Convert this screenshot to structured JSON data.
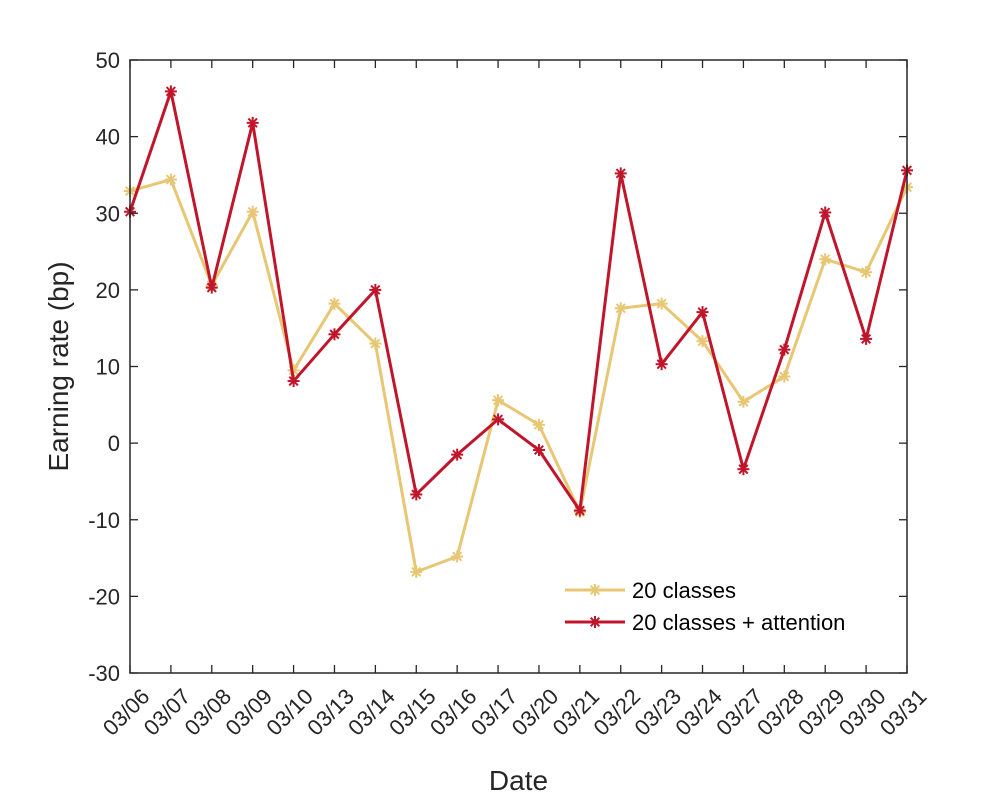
{
  "chart_data": {
    "type": "line",
    "title": "",
    "xlabel": "Date",
    "ylabel": "Earning rate (bp)",
    "categories": [
      "03/06",
      "03/07",
      "03/08",
      "03/09",
      "03/10",
      "03/13",
      "03/14",
      "03/15",
      "03/16",
      "03/17",
      "03/20",
      "03/21",
      "03/22",
      "03/23",
      "03/24",
      "03/27",
      "03/28",
      "03/29",
      "03/30",
      "03/31"
    ],
    "yticks": [
      -30,
      -20,
      -10,
      0,
      10,
      20,
      30,
      40,
      50
    ],
    "ylim": [
      -30,
      50
    ],
    "grid": false,
    "legend_position": "bottom-right",
    "series": [
      {
        "name": "20 classes",
        "color": "#E8C774",
        "marker": "asterisk",
        "values": [
          32.9,
          34.4,
          20.6,
          30.2,
          9.5,
          18.2,
          13.0,
          -16.8,
          -14.8,
          5.6,
          2.4,
          -9.0,
          17.6,
          18.2,
          13.3,
          5.4,
          8.7,
          24.0,
          22.3,
          33.4
        ]
      },
      {
        "name": "20 classes + attention",
        "color": "#C0162B",
        "marker": "asterisk",
        "values": [
          30.2,
          45.9,
          20.3,
          41.8,
          8.1,
          14.2,
          20.0,
          -6.7,
          -1.5,
          3.1,
          -0.9,
          -8.8,
          35.2,
          10.3,
          17.1,
          -3.4,
          12.2,
          30.1,
          13.6,
          35.6
        ]
      }
    ]
  }
}
